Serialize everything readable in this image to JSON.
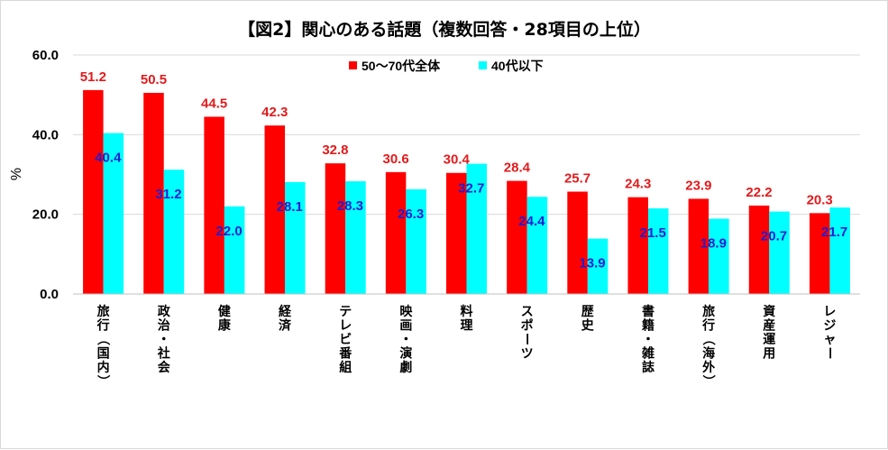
{
  "chart_data": {
    "type": "bar",
    "title": "【図2】関心のある話題（複数回答・28項目の上位）",
    "ylabel": "%",
    "xlabel": "",
    "ylim": [
      0,
      60
    ],
    "yticks": [
      "0.0",
      "20.0",
      "40.0",
      "60.0"
    ],
    "grid": true,
    "legend_position": "top",
    "categories": [
      "旅行（国内）",
      "政治・社会",
      "健康",
      "経済",
      "テレビ番組",
      "映画・演劇",
      "料理",
      "スポーツ",
      "歴史",
      "書籍・雑誌",
      "旅行（海外）",
      "資産運用",
      "レジャー"
    ],
    "series": [
      {
        "name": "50〜70代全体",
        "color": "#ff0000",
        "label_color": "#e31a1c",
        "values": [
          51.2,
          50.5,
          44.5,
          42.3,
          32.8,
          30.6,
          30.4,
          28.4,
          25.7,
          24.3,
          23.9,
          22.2,
          20.3
        ]
      },
      {
        "name": "40代以下",
        "color": "#00ffff",
        "label_color": "#1f1fd0",
        "values": [
          40.4,
          31.2,
          22.0,
          28.1,
          28.3,
          26.3,
          32.7,
          24.4,
          13.9,
          21.5,
          18.9,
          20.7,
          21.7
        ]
      }
    ]
  }
}
